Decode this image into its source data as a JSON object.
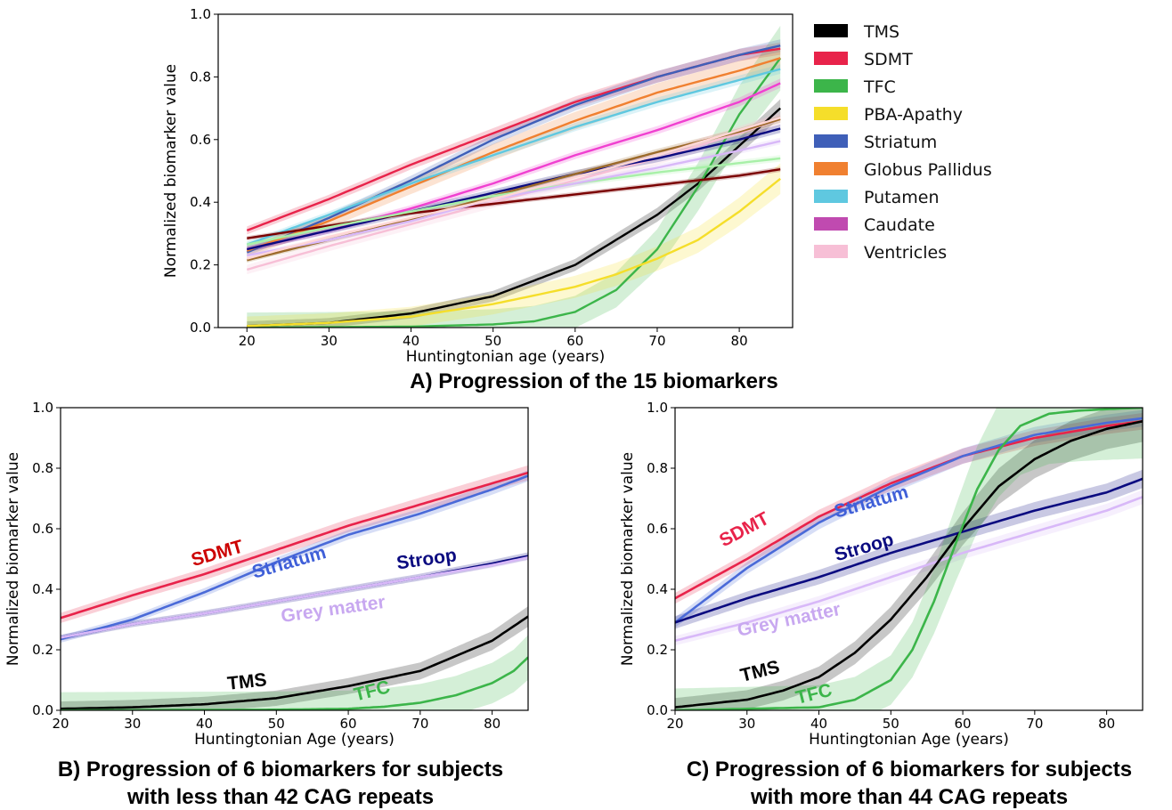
{
  "captions": {
    "a": "A) Progression of the 15 biomarkers",
    "b_line1": "B) Progression of 6 biomarkers for subjects",
    "b_line2": "with less than 42 CAG repeats",
    "c_line1": "C) Progression of 6 biomarkers for subjects",
    "c_line2": "with more than 44 CAG repeats"
  },
  "chart_data": [
    {
      "id": "A",
      "type": "line",
      "xlabel": "Huntingtonian age (years)",
      "ylabel": "Normalized biomarker value",
      "xlim": [
        16.5,
        86.5
      ],
      "ylim": [
        0,
        1
      ],
      "xticks": [
        20,
        30,
        40,
        50,
        60,
        70,
        80
      ],
      "yticks": [
        0,
        0.2,
        0.4,
        0.6,
        0.8,
        1.0
      ],
      "grid": false,
      "legend": {
        "placement": "outside-right",
        "entries": [
          {
            "label": "TMS",
            "color": "#000000"
          },
          {
            "label": "SDMT",
            "color": "#e8234a"
          },
          {
            "label": "TFC",
            "color": "#3cb54a"
          },
          {
            "label": "PBA-Apathy",
            "color": "#f5de2a"
          },
          {
            "label": "Striatum",
            "color": "#3f5fb8"
          },
          {
            "label": "Globus Pallidus",
            "color": "#f08030"
          },
          {
            "label": "Putamen",
            "color": "#5fc8e0"
          },
          {
            "label": "Caudate",
            "color": "#c04ab0"
          },
          {
            "label": "Ventricles",
            "color": "#f7bfd6"
          }
        ]
      },
      "series": [
        {
          "name": "TMS",
          "color": "#000000",
          "band": 0.025,
          "x": [
            20,
            30,
            40,
            50,
            60,
            70,
            75,
            80,
            85
          ],
          "y": [
            0.005,
            0.015,
            0.045,
            0.1,
            0.2,
            0.36,
            0.46,
            0.58,
            0.7
          ]
        },
        {
          "name": "SDMT",
          "color": "#e8234a",
          "band": 0.015,
          "x": [
            20,
            30,
            40,
            50,
            60,
            70,
            80,
            85
          ],
          "y": [
            0.31,
            0.41,
            0.52,
            0.62,
            0.72,
            0.8,
            0.87,
            0.89
          ]
        },
        {
          "name": "TFC",
          "color": "#3cb54a",
          "band": 0.08,
          "x": [
            20,
            40,
            50,
            55,
            60,
            65,
            70,
            75,
            80,
            85
          ],
          "y": [
            0.0,
            0.003,
            0.01,
            0.02,
            0.05,
            0.12,
            0.25,
            0.45,
            0.68,
            0.86
          ]
        },
        {
          "name": "PBA-Apathy",
          "color": "#f5de2a",
          "band": 0.05,
          "x": [
            20,
            30,
            40,
            50,
            60,
            65,
            70,
            75,
            80,
            85
          ],
          "y": [
            0.005,
            0.015,
            0.035,
            0.075,
            0.13,
            0.17,
            0.22,
            0.28,
            0.37,
            0.475
          ]
        },
        {
          "name": "Striatum",
          "color": "#3f5fb8",
          "band": 0.015,
          "x": [
            20,
            30,
            40,
            50,
            60,
            70,
            80,
            85
          ],
          "y": [
            0.24,
            0.35,
            0.47,
            0.6,
            0.71,
            0.8,
            0.87,
            0.9
          ]
        },
        {
          "name": "Globus Pallidus",
          "color": "#f08030",
          "band": 0.025,
          "x": [
            20,
            30,
            40,
            50,
            60,
            70,
            80,
            85
          ],
          "y": [
            0.245,
            0.34,
            0.45,
            0.56,
            0.66,
            0.75,
            0.82,
            0.86
          ]
        },
        {
          "name": "Putamen",
          "color": "#5fc8e0",
          "band": 0.012,
          "x": [
            20,
            30,
            40,
            50,
            60,
            70,
            80,
            85
          ],
          "y": [
            0.265,
            0.36,
            0.46,
            0.55,
            0.64,
            0.72,
            0.79,
            0.825
          ]
        },
        {
          "name": "Caudate",
          "color": "#f040d0",
          "band": 0.012,
          "x": [
            20,
            30,
            40,
            50,
            60,
            70,
            80,
            85
          ],
          "y": [
            0.25,
            0.31,
            0.38,
            0.46,
            0.55,
            0.63,
            0.72,
            0.78
          ]
        },
        {
          "name": "Ventricles",
          "color": "#f7bfd6",
          "band": 0.02,
          "x": [
            20,
            30,
            40,
            50,
            60,
            70,
            80,
            85
          ],
          "y": [
            0.185,
            0.26,
            0.33,
            0.4,
            0.47,
            0.54,
            0.62,
            0.665
          ]
        },
        {
          "color": "#0b0b80",
          "band": 0.012,
          "x": [
            20,
            30,
            40,
            50,
            60,
            70,
            80,
            85
          ],
          "y": [
            0.25,
            0.31,
            0.37,
            0.43,
            0.49,
            0.54,
            0.6,
            0.635
          ]
        },
        {
          "color": "#7a0000",
          "band": 0.008,
          "x": [
            20,
            30,
            40,
            50,
            60,
            70,
            80,
            85
          ],
          "y": [
            0.285,
            0.325,
            0.365,
            0.395,
            0.425,
            0.455,
            0.485,
            0.505
          ]
        },
        {
          "color": "#9c6a2a",
          "band": 0.01,
          "x": [
            20,
            30,
            40,
            50,
            60,
            70,
            80,
            85
          ],
          "y": [
            0.215,
            0.28,
            0.345,
            0.42,
            0.49,
            0.56,
            0.625,
            0.665
          ]
        },
        {
          "color": "#a8f0a8",
          "band": 0.01,
          "x": [
            20,
            30,
            40,
            50,
            60,
            70,
            80,
            85
          ],
          "y": [
            0.265,
            0.32,
            0.37,
            0.42,
            0.46,
            0.495,
            0.525,
            0.54
          ]
        },
        {
          "color": "#d8b8f8",
          "band": 0.01,
          "x": [
            20,
            30,
            40,
            50,
            60,
            70,
            80,
            85
          ],
          "y": [
            0.23,
            0.28,
            0.34,
            0.41,
            0.46,
            0.51,
            0.565,
            0.595
          ]
        },
        {
          "color": "#ffd6d6",
          "band": 0.01,
          "x": [
            20,
            30,
            40,
            50,
            60,
            70,
            80,
            85
          ],
          "y": [
            0.22,
            0.29,
            0.35,
            0.41,
            0.48,
            0.55,
            0.63,
            0.67
          ]
        }
      ]
    },
    {
      "id": "B",
      "type": "line",
      "xlabel": "Huntingtonian Age (years)",
      "ylabel": "Normalized biomarker value",
      "xlim": [
        20,
        85
      ],
      "ylim": [
        0,
        1
      ],
      "xticks": [
        20,
        30,
        40,
        50,
        60,
        70,
        80
      ],
      "yticks": [
        0,
        0.2,
        0.4,
        0.6,
        0.8,
        1.0
      ],
      "grid": false,
      "series": [
        {
          "name": "SDMT",
          "color": "#e8234a",
          "band": 0.02,
          "x": [
            20,
            30,
            40,
            50,
            60,
            70,
            80,
            85
          ],
          "y": [
            0.305,
            0.38,
            0.45,
            0.53,
            0.61,
            0.68,
            0.75,
            0.785
          ]
        },
        {
          "name": "Striatum",
          "color": "#4a6ad8",
          "band": 0.015,
          "x": [
            20,
            30,
            40,
            50,
            60,
            70,
            80,
            85
          ],
          "y": [
            0.235,
            0.3,
            0.39,
            0.49,
            0.58,
            0.65,
            0.73,
            0.775
          ]
        },
        {
          "name": "Stroop",
          "color": "#0b0b80",
          "band": 0.012,
          "x": [
            20,
            30,
            40,
            50,
            60,
            70,
            80,
            85
          ],
          "y": [
            0.24,
            0.285,
            0.32,
            0.36,
            0.4,
            0.44,
            0.485,
            0.51
          ]
        },
        {
          "name": "Grey matter",
          "color": "#d8b8f8",
          "band": 0.01,
          "x": [
            20,
            30,
            40,
            50,
            60,
            70,
            80,
            85
          ],
          "y": [
            0.24,
            0.285,
            0.32,
            0.36,
            0.4,
            0.44,
            0.48,
            0.505
          ]
        },
        {
          "name": "TMS",
          "color": "#000000",
          "band": 0.04,
          "x": [
            20,
            30,
            40,
            50,
            60,
            70,
            80,
            85
          ],
          "y": [
            0.005,
            0.01,
            0.02,
            0.04,
            0.08,
            0.13,
            0.23,
            0.31
          ]
        },
        {
          "name": "TFC",
          "color": "#3cb54a",
          "band": 0.1,
          "x": [
            20,
            50,
            60,
            65,
            70,
            75,
            80,
            83,
            85
          ],
          "y": [
            0.0,
            0.002,
            0.005,
            0.012,
            0.025,
            0.05,
            0.09,
            0.13,
            0.175
          ]
        }
      ],
      "annotations": [
        {
          "text": "SDMT",
          "color": "#cc0000",
          "x": 42,
          "y": 0.5,
          "angle": -16
        },
        {
          "text": "Striatum",
          "color": "#3f5fd8",
          "x": 52,
          "y": 0.47,
          "angle": -16
        },
        {
          "text": "Stroop",
          "color": "#0b0b80",
          "x": 71,
          "y": 0.48,
          "angle": -8
        },
        {
          "text": "Grey matter",
          "color": "#c8a8f0",
          "x": 58,
          "y": 0.315,
          "angle": -8
        },
        {
          "text": "TMS",
          "color": "#000000",
          "x": 46,
          "y": 0.075,
          "angle": -6
        },
        {
          "text": "TFC",
          "color": "#3cb54a",
          "x": 63.5,
          "y": 0.045,
          "angle": -14
        }
      ]
    },
    {
      "id": "C",
      "type": "line",
      "xlabel": "Huntingtonian Age (years)",
      "ylabel": "Normalized biomarker value",
      "xlim": [
        20,
        85
      ],
      "ylim": [
        0,
        1
      ],
      "xticks": [
        20,
        30,
        40,
        50,
        60,
        70,
        80
      ],
      "yticks": [
        0,
        0.2,
        0.4,
        0.6,
        0.8,
        1.0
      ],
      "grid": false,
      "series": [
        {
          "name": "SDMT",
          "color": "#e8234a",
          "band": 0.02,
          "x": [
            20,
            30,
            40,
            50,
            60,
            70,
            80,
            85
          ],
          "y": [
            0.37,
            0.5,
            0.64,
            0.75,
            0.84,
            0.9,
            0.94,
            0.955
          ]
        },
        {
          "name": "Striatum",
          "color": "#4a6ad8",
          "band": 0.02,
          "x": [
            20,
            25,
            30,
            40,
            50,
            60,
            70,
            80,
            85
          ],
          "y": [
            0.29,
            0.38,
            0.47,
            0.62,
            0.74,
            0.84,
            0.91,
            0.95,
            0.965
          ]
        },
        {
          "name": "Stroop",
          "color": "#0b0b80",
          "band": 0.025,
          "x": [
            20,
            30,
            40,
            50,
            60,
            70,
            80,
            85
          ],
          "y": [
            0.29,
            0.37,
            0.44,
            0.52,
            0.59,
            0.66,
            0.72,
            0.765
          ]
        },
        {
          "name": "Grey matter",
          "color": "#d8b8f8",
          "band": 0.02,
          "x": [
            20,
            30,
            40,
            50,
            60,
            70,
            80,
            85
          ],
          "y": [
            0.23,
            0.29,
            0.36,
            0.44,
            0.52,
            0.59,
            0.66,
            0.705
          ]
        },
        {
          "name": "TMS",
          "color": "#000000",
          "band": 0.05,
          "x": [
            20,
            30,
            35,
            40,
            45,
            50,
            55,
            60,
            65,
            70,
            75,
            80,
            85
          ],
          "y": [
            0.01,
            0.035,
            0.065,
            0.11,
            0.19,
            0.3,
            0.44,
            0.6,
            0.74,
            0.83,
            0.89,
            0.93,
            0.955
          ]
        },
        {
          "name": "TFC",
          "color": "#3cb54a",
          "band": 0.12,
          "x": [
            20,
            40,
            45,
            50,
            53,
            56,
            59,
            62,
            65,
            68,
            72,
            76,
            80,
            85
          ],
          "y": [
            0.0,
            0.01,
            0.035,
            0.1,
            0.2,
            0.36,
            0.55,
            0.73,
            0.86,
            0.94,
            0.98,
            0.99,
            0.995,
            1.0
          ]
        }
      ],
      "annotations": [
        {
          "text": "SDMT",
          "color": "#e8234a",
          "x": 30,
          "y": 0.58,
          "angle": -28
        },
        {
          "text": "Striatum",
          "color": "#3f5fd8",
          "x": 47.5,
          "y": 0.67,
          "angle": -16
        },
        {
          "text": "Stroop",
          "color": "#0b0b80",
          "x": 46.5,
          "y": 0.52,
          "angle": -16
        },
        {
          "text": "Grey matter",
          "color": "#c8a8f0",
          "x": 36,
          "y": 0.28,
          "angle": -12
        },
        {
          "text": "TMS",
          "color": "#000000",
          "x": 32,
          "y": 0.11,
          "angle": -14
        },
        {
          "text": "TFC",
          "color": "#3cb54a",
          "x": 39.5,
          "y": 0.035,
          "angle": -14
        }
      ]
    }
  ]
}
